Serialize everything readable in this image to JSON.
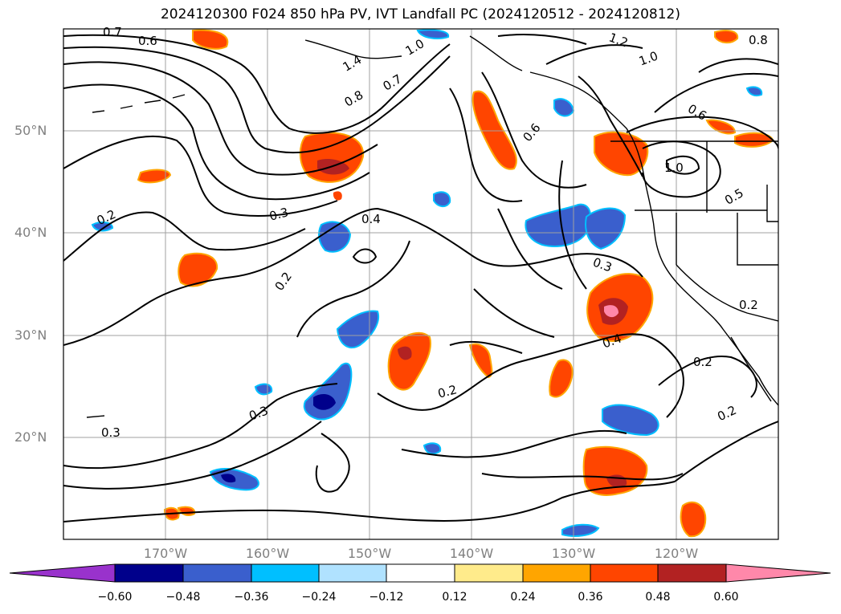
{
  "title": "2024120300 F024 850 hPa PV, IVT Landfall PC (2024120512 - 2024120812)",
  "lat_labels": [
    "50°N",
    "40°N",
    "30°N",
    "20°N"
  ],
  "lon_labels": [
    "170°W",
    "160°W",
    "150°W",
    "140°W",
    "130°W",
    "120°W"
  ],
  "colorbar": {
    "colors": [
      "#9932cc",
      "#00008b",
      "#3a5fcd",
      "#00bfff",
      "#b0e2ff",
      "#ffffff",
      "#ffeb8b",
      "#ffa500",
      "#ff4500",
      "#b22222",
      "#ff88aa"
    ],
    "tick_labels": [
      "−0.60",
      "−0.48",
      "−0.36",
      "−0.24",
      "−0.12",
      "0.12",
      "0.24",
      "0.36",
      "0.48",
      "0.60"
    ]
  },
  "contour_labels": [
    "0.7",
    "0.6",
    "1.4",
    "1.0",
    "0.8",
    "0.7",
    "1.2",
    "1.0",
    "0.8",
    "0.6",
    "0.6",
    "1.0",
    "0.5",
    "0.2",
    "0.3",
    "0.4",
    "0.2",
    "0.3",
    "0.4",
    "0.2",
    "0.2",
    "0.2",
    "0.3",
    "0.3",
    "0.2"
  ],
  "map": {
    "extent": {
      "lon_min": -180,
      "lon_max": -110,
      "lat_min": 10,
      "lat_max": 60
    },
    "gridlines": true,
    "shading_field": "IVT landfall PC",
    "contour_field": "850 hPa PV"
  }
}
